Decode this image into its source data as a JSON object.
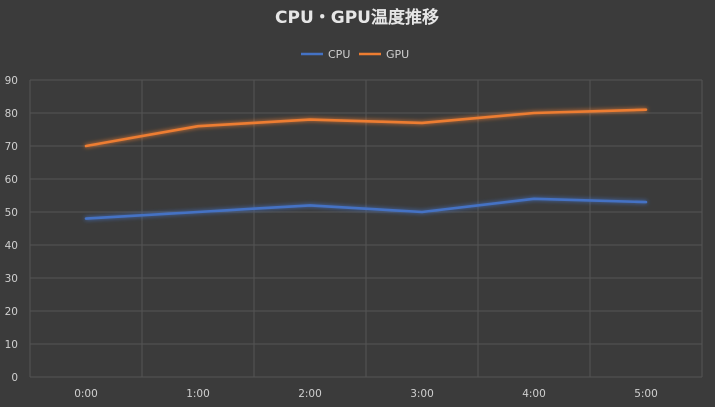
{
  "chart_data": {
    "type": "line",
    "title": "CPU・GPU温度推移",
    "categories": [
      "0:00",
      "1:00",
      "2:00",
      "3:00",
      "4:00",
      "5:00"
    ],
    "series": [
      {
        "name": "CPU",
        "color": "#4472c4",
        "values": [
          48,
          50,
          52,
          50,
          54,
          53
        ]
      },
      {
        "name": "GPU",
        "color": "#ed7d31",
        "values": [
          70,
          76,
          78,
          77,
          80,
          81
        ]
      }
    ],
    "ylim": [
      0,
      90
    ],
    "yticks": [
      "0",
      "10",
      "20",
      "30",
      "40",
      "50",
      "60",
      "70",
      "80",
      "90"
    ],
    "grid": true,
    "legend_position": "top",
    "background_color": "#3b3b3b",
    "grid_color": "#555555"
  }
}
